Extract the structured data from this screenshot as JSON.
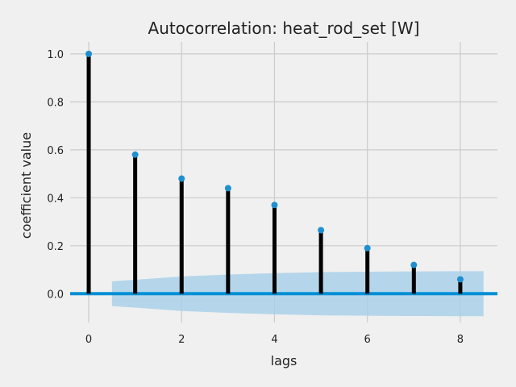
{
  "chart_data": {
    "type": "stem",
    "title": "Autocorrelation: heat_rod_set [W]",
    "xlabel": "lags",
    "ylabel": "coefficient value",
    "xlim": [
      -0.4,
      8.8
    ],
    "ylim": [
      -0.12,
      1.05
    ],
    "xticks": [
      0,
      2,
      4,
      6,
      8
    ],
    "yticks": [
      0.0,
      0.2,
      0.4,
      0.6,
      0.8,
      1.0
    ],
    "ytick_labels": [
      "0.0",
      "0.2",
      "0.4",
      "0.6",
      "0.8",
      "1.0"
    ],
    "grid": true,
    "lags": [
      0,
      1,
      2,
      3,
      4,
      5,
      6,
      7,
      8
    ],
    "values": [
      1.0,
      0.58,
      0.48,
      0.44,
      0.37,
      0.265,
      0.19,
      0.12,
      0.06
    ],
    "confidence_band": {
      "x": [
        0.5,
        1,
        2,
        3,
        4,
        5,
        6,
        7,
        8,
        8.5
      ],
      "upper": [
        0.052,
        0.058,
        0.072,
        0.08,
        0.086,
        0.09,
        0.092,
        0.093,
        0.094,
        0.094
      ],
      "lower": [
        -0.052,
        -0.058,
        -0.072,
        -0.08,
        -0.086,
        -0.09,
        -0.092,
        -0.093,
        -0.094,
        -0.094
      ]
    },
    "colors": {
      "background": "#f0f0f0",
      "stem": "#000000",
      "marker": "#1f8fd0",
      "baseline": "#008fd5",
      "band": "#a6cfe8"
    }
  }
}
